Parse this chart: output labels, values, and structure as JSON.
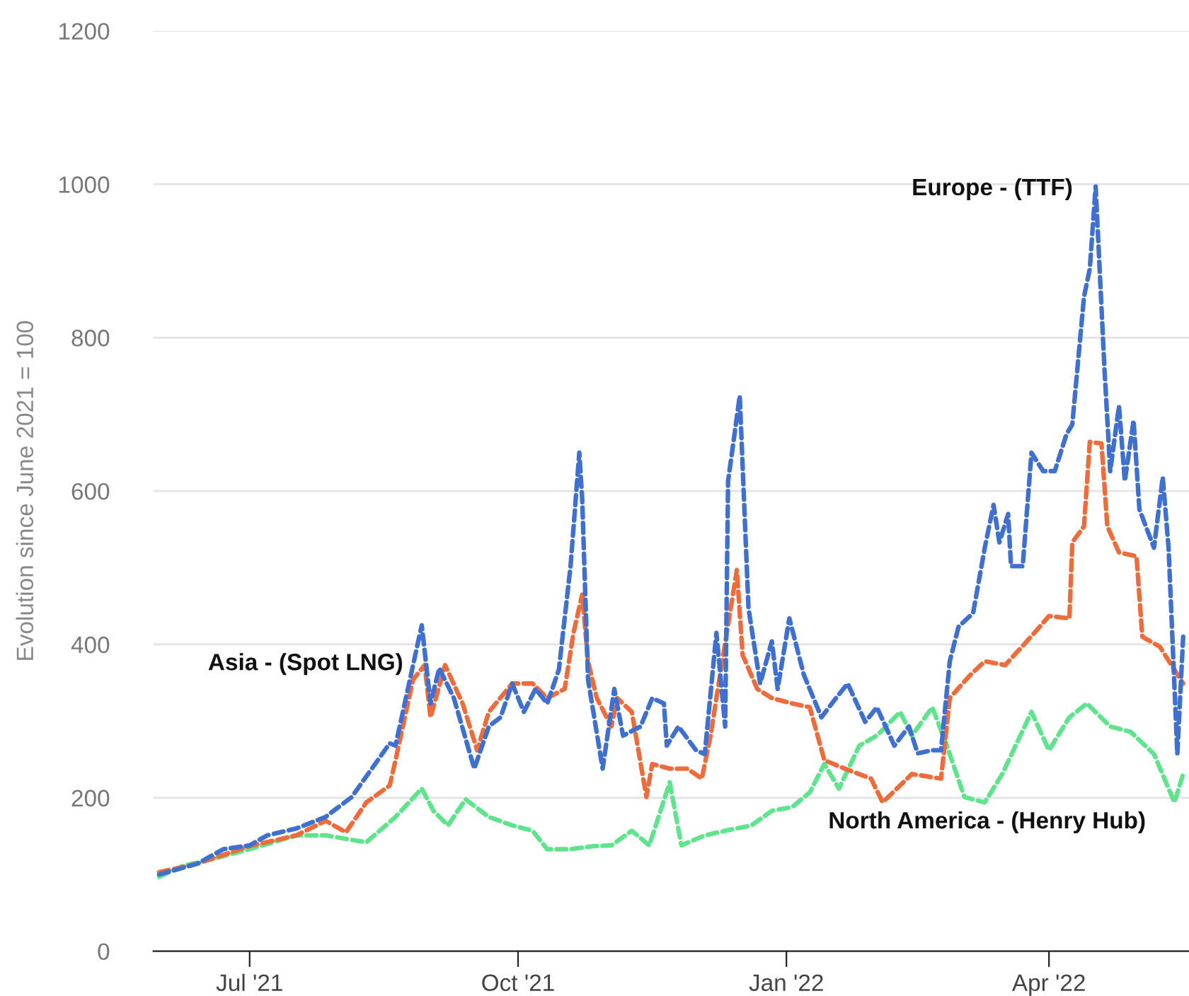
{
  "chart_data": {
    "type": "line",
    "ylabel": "Evolution since June 2021 = 100",
    "xlim": [
      "2021-05-29",
      "2022-05-19"
    ],
    "ylim": [
      0,
      1200
    ],
    "yticks": [
      0,
      200,
      400,
      600,
      800,
      1000,
      1200
    ],
    "xticks": [
      {
        "value": "2021-07-01",
        "label": "Jul '21"
      },
      {
        "value": "2021-10-01",
        "label": "Oct '21"
      },
      {
        "value": "2022-01-01",
        "label": "Jan '22"
      },
      {
        "value": "2022-04-01",
        "label": "Apr '22"
      }
    ],
    "grid": "y",
    "legend": false,
    "marker": "none",
    "line_style": "dashed",
    "series": [
      {
        "name": "Europe - (TTF)",
        "color": "#3f6fcf",
        "x": [
          "2021-05-31",
          "2021-06-13",
          "2021-06-22",
          "2021-07-01",
          "2021-07-07",
          "2021-07-17",
          "2021-07-27",
          "2021-08-05",
          "2021-08-13",
          "2021-08-18",
          "2021-08-20",
          "2021-08-29",
          "2021-09-01",
          "2021-09-04",
          "2021-09-09",
          "2021-09-16",
          "2021-09-21",
          "2021-09-25",
          "2021-09-29",
          "2021-10-03",
          "2021-10-07",
          "2021-10-11",
          "2021-10-15",
          "2021-10-19",
          "2021-10-22",
          "2021-10-23",
          "2021-10-25",
          "2021-10-30",
          "2021-11-03",
          "2021-11-06",
          "2021-11-12",
          "2021-11-16",
          "2021-11-20",
          "2021-11-21",
          "2021-11-25",
          "2021-12-01",
          "2021-12-04",
          "2021-12-08",
          "2021-12-11",
          "2021-12-12",
          "2021-12-16",
          "2021-12-18",
          "2021-12-19",
          "2021-12-23",
          "2021-12-27",
          "2021-12-29",
          "2022-01-02",
          "2022-01-07",
          "2022-01-13",
          "2022-01-18",
          "2022-01-22",
          "2022-01-28",
          "2022-02-01",
          "2022-02-07",
          "2022-02-12",
          "2022-02-15",
          "2022-02-20",
          "2022-02-23",
          "2022-02-26",
          "2022-03-01",
          "2022-03-06",
          "2022-03-10",
          "2022-03-13",
          "2022-03-15",
          "2022-03-18",
          "2022-03-19",
          "2022-03-23",
          "2022-03-26",
          "2022-03-30",
          "2022-04-03",
          "2022-04-07",
          "2022-04-09",
          "2022-04-13",
          "2022-04-15",
          "2022-04-17",
          "2022-04-20",
          "2022-04-22",
          "2022-04-25",
          "2022-04-27",
          "2022-04-30",
          "2022-05-02",
          "2022-05-07",
          "2022-05-10",
          "2022-05-12",
          "2022-05-15",
          "2022-05-17"
        ],
        "values": [
          100,
          114,
          133,
          138,
          151,
          160,
          175,
          201,
          244,
          271,
          268,
          425,
          323,
          369,
          330,
          238,
          293,
          305,
          349,
          312,
          342,
          323,
          367,
          502,
          650,
          589,
          354,
          238,
          342,
          281,
          293,
          330,
          323,
          268,
          293,
          262,
          257,
          415,
          293,
          613,
          724,
          539,
          447,
          349,
          404,
          342,
          434,
          360,
          305,
          330,
          349,
          299,
          318,
          268,
          293,
          258,
          262,
          262,
          378,
          423,
          441,
          526,
          582,
          533,
          570,
          502,
          502,
          650,
          626,
          626,
          674,
          687,
          853,
          890,
          997,
          761,
          626,
          711,
          613,
          692,
          576,
          526,
          618,
          526,
          257,
          410
        ]
      },
      {
        "name": "Asia - (Spot LNG)",
        "color": "#ee6c3c",
        "x": [
          "2021-05-31",
          "2021-06-13",
          "2021-07-01",
          "2021-07-17",
          "2021-07-27",
          "2021-08-03",
          "2021-08-10",
          "2021-08-18",
          "2021-08-20",
          "2021-08-26",
          "2021-08-30",
          "2021-09-01",
          "2021-09-06",
          "2021-09-12",
          "2021-09-17",
          "2021-09-21",
          "2021-09-29",
          "2021-10-06",
          "2021-10-11",
          "2021-10-17",
          "2021-10-20",
          "2021-10-23",
          "2021-10-25",
          "2021-10-28",
          "2021-11-02",
          "2021-11-04",
          "2021-11-09",
          "2021-11-14",
          "2021-11-16",
          "2021-11-22",
          "2021-11-28",
          "2021-12-03",
          "2021-12-06",
          "2021-12-09",
          "2021-12-15",
          "2021-12-17",
          "2021-12-22",
          "2021-12-27",
          "2022-01-03",
          "2022-01-09",
          "2022-01-14",
          "2022-01-21",
          "2022-01-30",
          "2022-02-03",
          "2022-02-13",
          "2022-02-23",
          "2022-02-26",
          "2022-03-05",
          "2022-03-10",
          "2022-03-17",
          "2022-03-27",
          "2022-04-01",
          "2022-04-08",
          "2022-04-09",
          "2022-04-13",
          "2022-04-15",
          "2022-04-19",
          "2022-04-21",
          "2022-04-25",
          "2022-05-01",
          "2022-05-03",
          "2022-05-09",
          "2022-05-13",
          "2022-05-17"
        ],
        "values": [
          103,
          114,
          137,
          151,
          170,
          155,
          194,
          216,
          249,
          354,
          373,
          305,
          373,
          323,
          262,
          312,
          349,
          349,
          330,
          342,
          415,
          465,
          378,
          330,
          293,
          330,
          312,
          201,
          244,
          238,
          238,
          225,
          281,
          354,
          497,
          386,
          342,
          330,
          323,
          318,
          249,
          238,
          225,
          194,
          231,
          225,
          330,
          360,
          378,
          373,
          415,
          437,
          434,
          533,
          554,
          664,
          662,
          554,
          520,
          515,
          410,
          397,
          373,
          349
        ]
      },
      {
        "name": "North America - (Henry Hub)",
        "color": "#5fe38d",
        "x": [
          "2021-05-31",
          "2021-06-08",
          "2021-06-18",
          "2021-07-01",
          "2021-07-17",
          "2021-07-27",
          "2021-08-10",
          "2021-08-20",
          "2021-08-29",
          "2021-09-02",
          "2021-09-07",
          "2021-09-13",
          "2021-09-21",
          "2021-09-29",
          "2021-10-06",
          "2021-10-11",
          "2021-10-19",
          "2021-10-27",
          "2021-11-02",
          "2021-11-09",
          "2021-11-15",
          "2021-11-22",
          "2021-11-26",
          "2021-12-04",
          "2021-12-11",
          "2021-12-20",
          "2021-12-27",
          "2022-01-03",
          "2022-01-09",
          "2022-01-14",
          "2022-01-19",
          "2022-01-26",
          "2022-02-01",
          "2022-02-09",
          "2022-02-13",
          "2022-02-20",
          "2022-02-25",
          "2022-03-03",
          "2022-03-10",
          "2022-03-16",
          "2022-03-26",
          "2022-04-01",
          "2022-04-08",
          "2022-04-14",
          "2022-04-22",
          "2022-04-29",
          "2022-05-07",
          "2022-05-14",
          "2022-05-17"
        ],
        "values": [
          97,
          111,
          120,
          133,
          151,
          151,
          142,
          175,
          212,
          183,
          164,
          198,
          175,
          164,
          157,
          133,
          133,
          137,
          138,
          157,
          138,
          220,
          138,
          151,
          157,
          164,
          183,
          188,
          207,
          244,
          212,
          268,
          281,
          312,
          281,
          318,
          268,
          201,
          194,
          231,
          312,
          262,
          305,
          323,
          293,
          286,
          257,
          194,
          231
        ]
      }
    ]
  }
}
